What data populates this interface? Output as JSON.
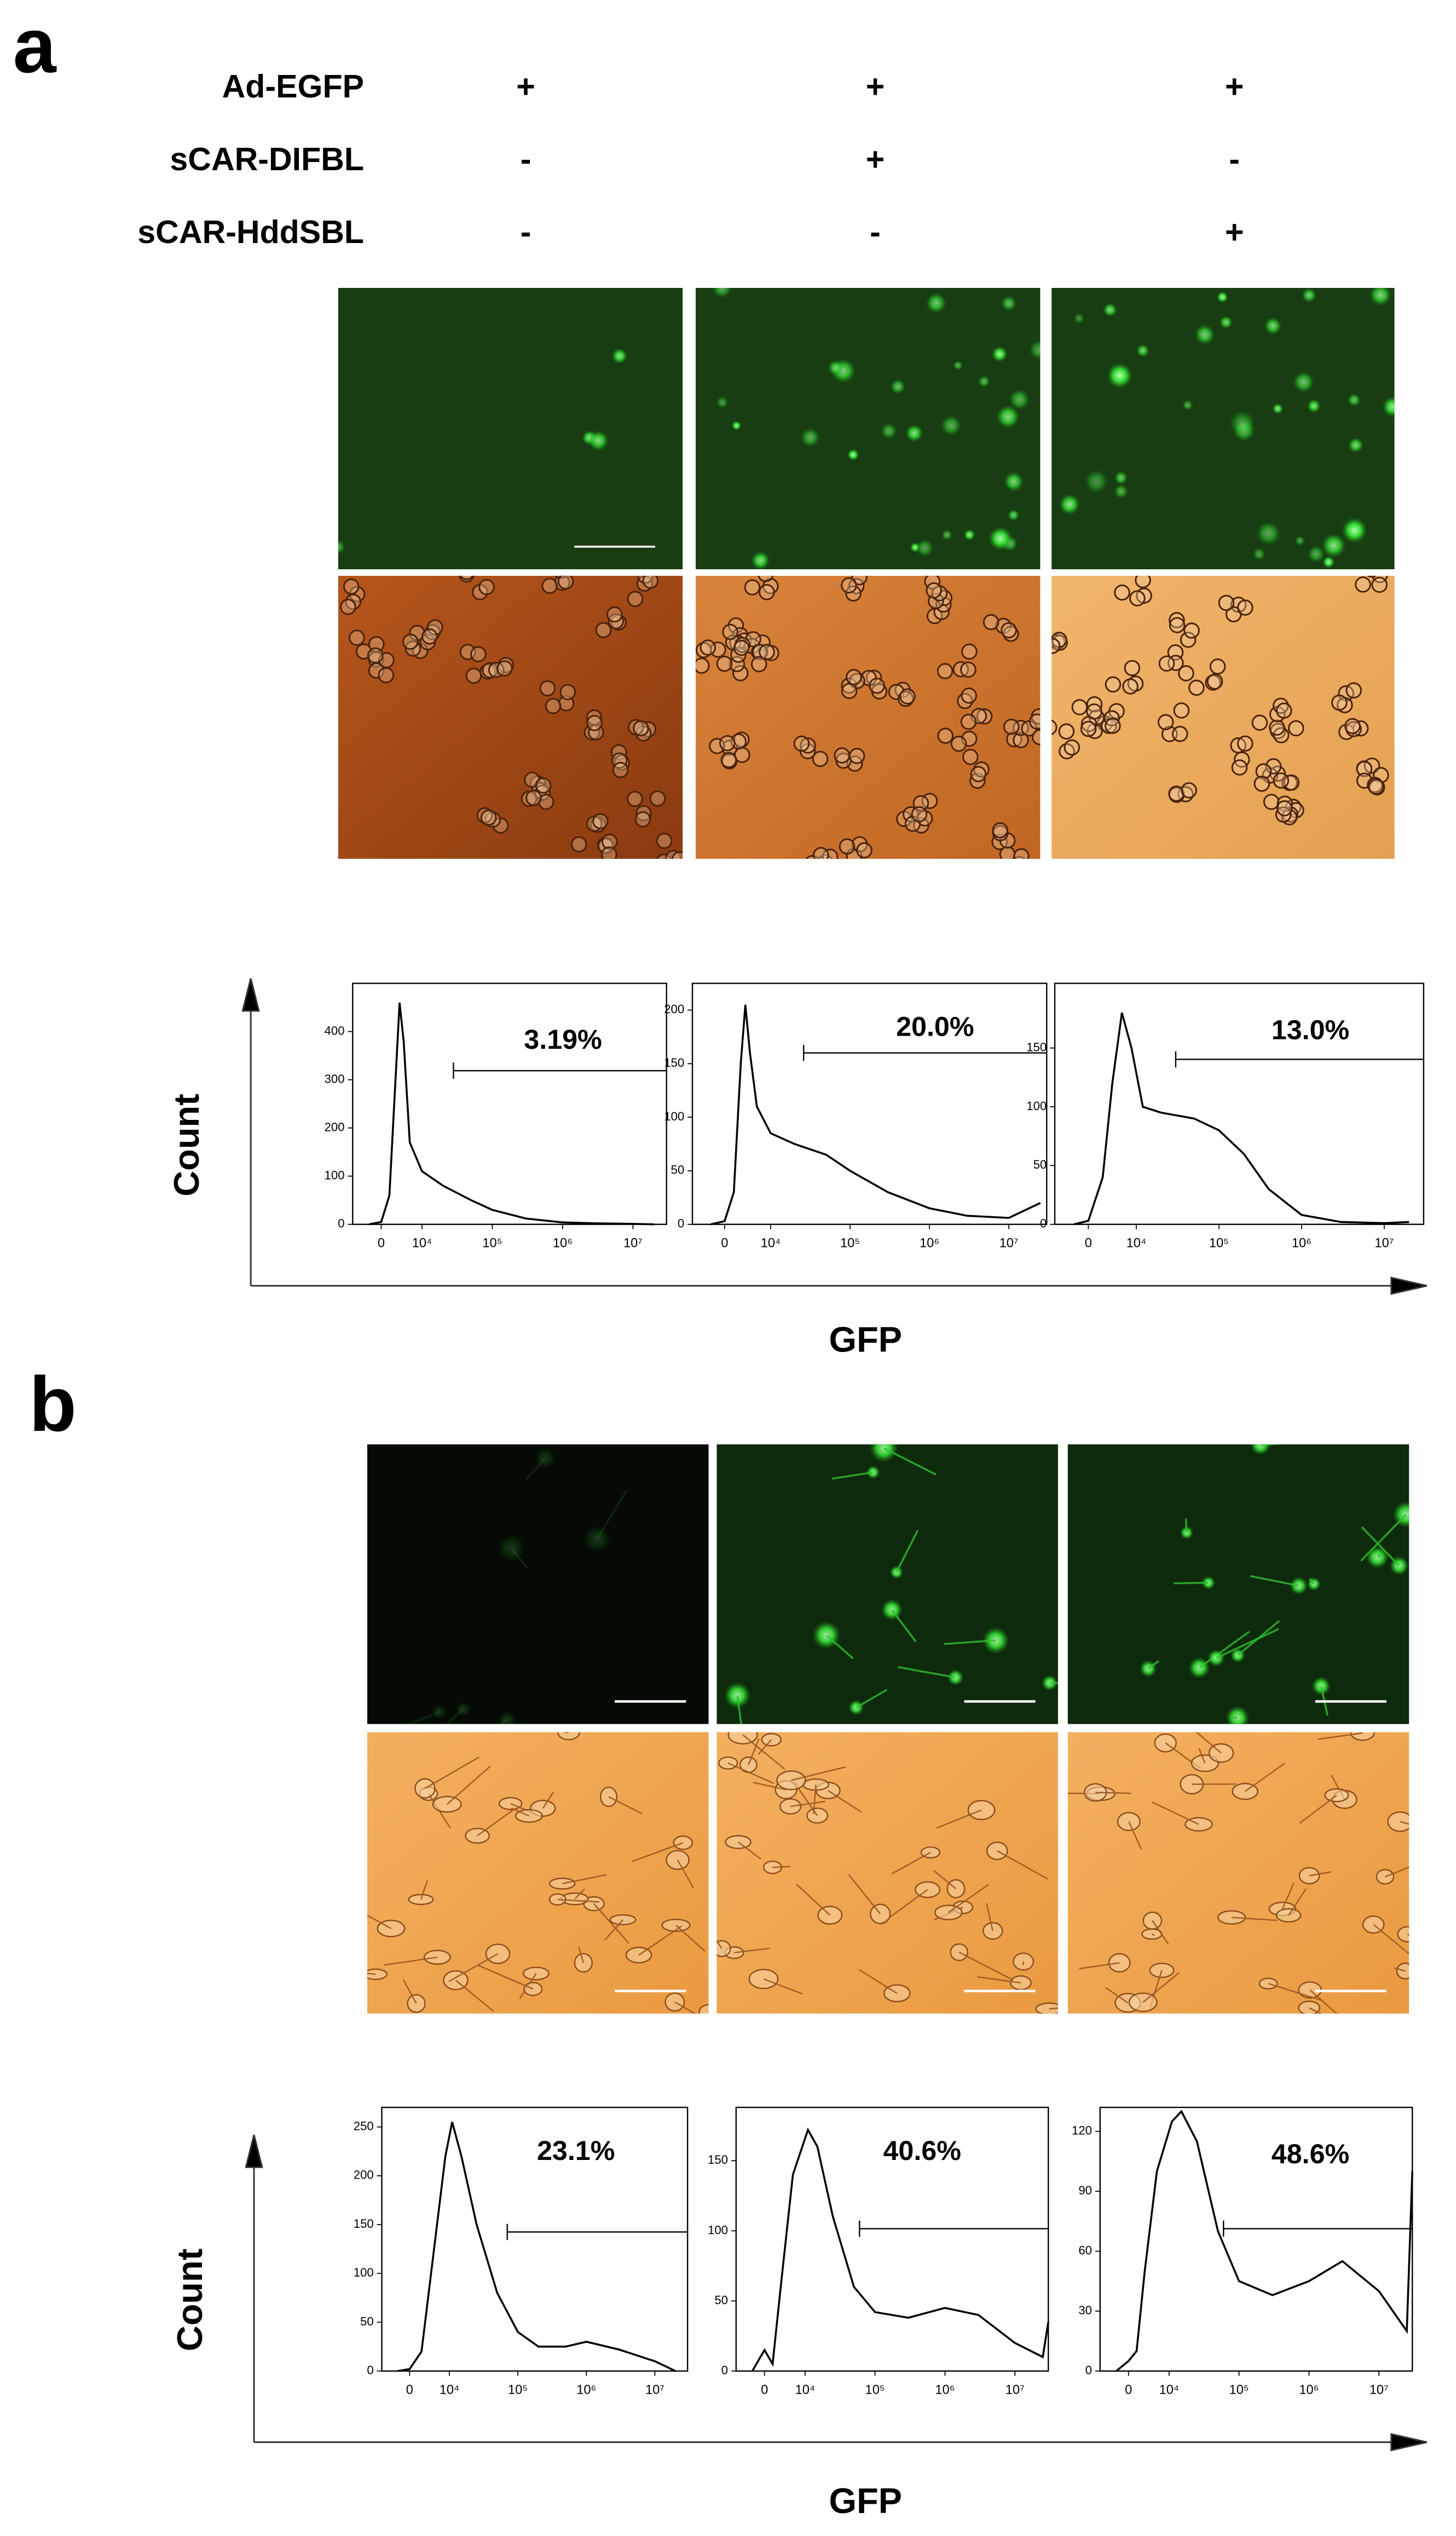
{
  "figure": {
    "panel_a": {
      "label": "a",
      "rows": [
        {
          "name": "Ad-EGFP",
          "signs": [
            "+",
            "+",
            "+"
          ]
        },
        {
          "name": "sCAR-DIFBL",
          "signs": [
            "-",
            "+",
            "-"
          ]
        },
        {
          "name": "sCAR-HddSBL",
          "signs": [
            "-",
            "-",
            "+"
          ]
        }
      ],
      "y_label": "Count",
      "x_label": "GFP"
    },
    "panel_b": {
      "label": "b",
      "y_label": "Count",
      "x_label": "GFP"
    }
  },
  "chart_data": [
    {
      "type": "line",
      "xscale": "biexponential",
      "color": "#000000",
      "annotation": "3.19%",
      "gate_x": 28000,
      "x": [
        -3000,
        0,
        2000,
        3500,
        4500,
        5500,
        7000,
        10000,
        20000,
        50000,
        100000,
        300000,
        1000000,
        3000000,
        10000000,
        20000000
      ],
      "values": [
        0,
        5,
        60,
        300,
        460,
        380,
        170,
        110,
        80,
        50,
        30,
        12,
        4,
        2,
        1,
        0
      ],
      "xlim": [
        -7000,
        30000000
      ],
      "ylim": [
        0,
        500
      ],
      "xticks": [
        0,
        {
          "value": 10000,
          "label": "10⁴"
        },
        {
          "value": 100000,
          "label": "10⁵"
        },
        {
          "value": 1000000,
          "label": "10⁶"
        },
        {
          "value": 10000000,
          "label": "10⁷"
        }
      ],
      "yticks": [
        0,
        100,
        200,
        300,
        400
      ]
    },
    {
      "type": "line",
      "xscale": "biexponential",
      "color": "#000000",
      "annotation": "20.0%",
      "gate_x": 26000,
      "x": [
        -3000,
        0,
        2000,
        3500,
        4500,
        5500,
        7000,
        10000,
        20000,
        50000,
        100000,
        300000,
        1000000,
        3000000,
        10000000,
        25000000
      ],
      "values": [
        0,
        3,
        30,
        150,
        205,
        160,
        110,
        85,
        75,
        65,
        50,
        30,
        15,
        8,
        6,
        20
      ],
      "xlim": [
        -7000,
        30000000
      ],
      "ylim": [
        0,
        225
      ],
      "xticks": [
        0,
        {
          "value": 10000,
          "label": "10⁴"
        },
        {
          "value": 100000,
          "label": "10⁵"
        },
        {
          "value": 1000000,
          "label": "10⁶"
        },
        {
          "value": 10000000,
          "label": "10⁷"
        }
      ],
      "yticks": [
        0,
        50,
        100,
        150,
        200
      ]
    },
    {
      "type": "line",
      "xscale": "biexponential",
      "color": "#000000",
      "annotation": "13.0%",
      "gate_x": 30000,
      "x": [
        -3000,
        0,
        3000,
        5000,
        7000,
        9000,
        12000,
        20000,
        50000,
        100000,
        200000,
        400000,
        1000000,
        3000000,
        10000000,
        20000000
      ],
      "values": [
        0,
        3,
        40,
        120,
        180,
        150,
        100,
        95,
        90,
        80,
        60,
        30,
        8,
        2,
        1,
        2
      ],
      "xlim": [
        -7000,
        30000000
      ],
      "ylim": [
        0,
        205
      ],
      "xticks": [
        0,
        {
          "value": 10000,
          "label": "10⁴"
        },
        {
          "value": 100000,
          "label": "10⁵"
        },
        {
          "value": 1000000,
          "label": "10⁶"
        },
        {
          "value": 10000000,
          "label": "10⁷"
        }
      ],
      "yticks": [
        0,
        50,
        100,
        150
      ]
    },
    {
      "type": "line",
      "xscale": "biexponential",
      "color": "#000000",
      "annotation": "23.1%",
      "gate_x": 70000,
      "x": [
        -3000,
        0,
        3000,
        6000,
        9000,
        11000,
        15000,
        25000,
        50000,
        100000,
        200000,
        500000,
        1000000,
        3000000,
        10000000,
        20000000
      ],
      "values": [
        0,
        2,
        20,
        120,
        220,
        255,
        220,
        150,
        80,
        40,
        25,
        25,
        30,
        22,
        10,
        0
      ],
      "xlim": [
        -7000,
        30000000
      ],
      "ylim": [
        0,
        270
      ],
      "xticks": [
        0,
        {
          "value": 10000,
          "label": "10⁴"
        },
        {
          "value": 100000,
          "label": "10⁵"
        },
        {
          "value": 1000000,
          "label": "10⁶"
        },
        {
          "value": 10000000,
          "label": "10⁷"
        }
      ],
      "yticks": [
        0,
        50,
        100,
        150,
        200,
        250
      ]
    },
    {
      "type": "line",
      "xscale": "biexponential",
      "color": "#000000",
      "annotation": "40.6%",
      "gate_x": 60000,
      "x": [
        -3000,
        0,
        2000,
        4000,
        7000,
        11000,
        15000,
        25000,
        50000,
        100000,
        300000,
        1000000,
        3000000,
        10000000,
        25000000,
        30000000
      ],
      "values": [
        0,
        15,
        5,
        60,
        140,
        172,
        160,
        110,
        60,
        42,
        38,
        45,
        40,
        20,
        10,
        35
      ],
      "xlim": [
        -7000,
        30000000
      ],
      "ylim": [
        0,
        188
      ],
      "xticks": [
        0,
        {
          "value": 10000,
          "label": "10⁴"
        },
        {
          "value": 100000,
          "label": "10⁵"
        },
        {
          "value": 1000000,
          "label": "10⁶"
        },
        {
          "value": 10000000,
          "label": "10⁷"
        }
      ],
      "yticks": [
        0,
        50,
        100,
        150
      ]
    },
    {
      "type": "line",
      "xscale": "biexponential",
      "color": "#000000",
      "annotation": "48.6%",
      "gate_x": 60000,
      "x": [
        -3000,
        0,
        2000,
        4000,
        7000,
        11000,
        15000,
        25000,
        50000,
        100000,
        300000,
        1000000,
        3000000,
        10000000,
        25000000,
        30000000
      ],
      "values": [
        0,
        5,
        10,
        50,
        100,
        125,
        130,
        115,
        70,
        45,
        38,
        45,
        55,
        40,
        20,
        100
      ],
      "xlim": [
        -7000,
        30000000
      ],
      "ylim": [
        0,
        132
      ],
      "xticks": [
        0,
        {
          "value": 10000,
          "label": "10⁴"
        },
        {
          "value": 100000,
          "label": "10⁵"
        },
        {
          "value": 1000000,
          "label": "10⁶"
        },
        {
          "value": 10000000,
          "label": "10⁷"
        }
      ],
      "yticks": [
        0,
        30,
        60,
        90,
        120
      ]
    }
  ]
}
